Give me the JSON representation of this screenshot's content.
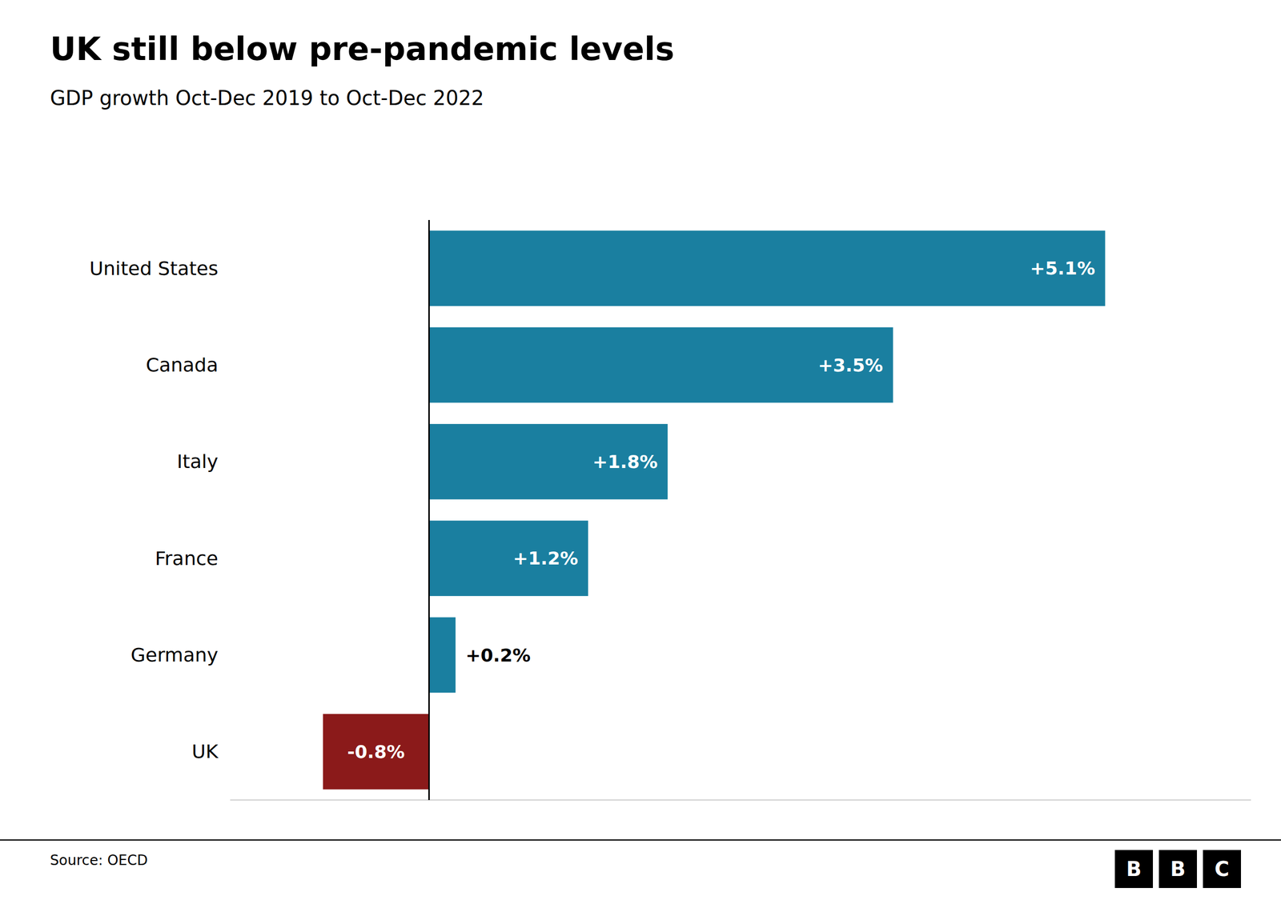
{
  "chart_data": {
    "type": "bar",
    "orientation": "horizontal",
    "title": "UK still below pre-pandemic levels",
    "subtitle": "GDP growth Oct-Dec 2019 to Oct-Dec 2022",
    "source": "Source: OECD",
    "logo": [
      "B",
      "B",
      "C"
    ],
    "categories": [
      "United States",
      "Canada",
      "Italy",
      "France",
      "Germany",
      "UK"
    ],
    "values": [
      5.1,
      3.5,
      1.8,
      1.2,
      0.2,
      -0.8
    ],
    "value_labels": [
      "+5.1%",
      "+3.5%",
      "+1.8%",
      "+1.2%",
      "+0.2%",
      "-0.8%"
    ],
    "colors": [
      "#1a7fa0",
      "#1a7fa0",
      "#1a7fa0",
      "#1a7fa0",
      "#1a7fa0",
      "#8b1a1a"
    ],
    "xlim": [
      -1.5,
      6.2
    ],
    "xticks": [
      0
    ],
    "tick_labels": "y",
    "data_labels": true,
    "grid": false
  }
}
